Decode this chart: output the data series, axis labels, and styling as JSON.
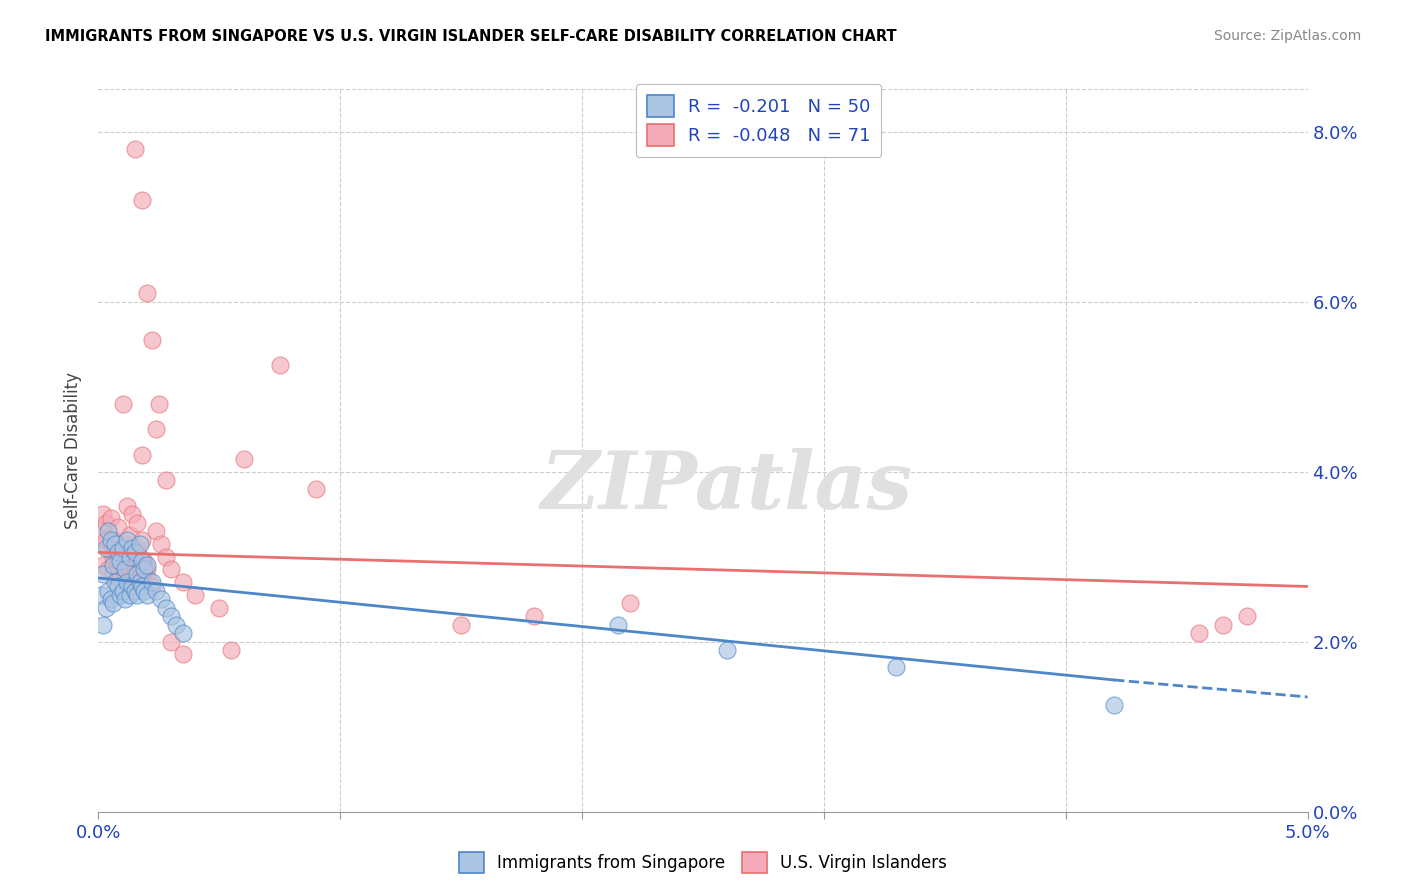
{
  "title": "IMMIGRANTS FROM SINGAPORE VS U.S. VIRGIN ISLANDER SELF-CARE DISABILITY CORRELATION CHART",
  "source": "Source: ZipAtlas.com",
  "ylabel": "Self-Care Disability",
  "xmin": 0.0,
  "xmax": 5.0,
  "ymin": 0.0,
  "ymax": 8.5,
  "ytick_vals": [
    0,
    2,
    4,
    6,
    8
  ],
  "ytick_labels": [
    "0.0%",
    "2.0%",
    "4.0%",
    "6.0%",
    "8.0%"
  ],
  "xtick_vals": [
    0.0,
    1.0,
    2.0,
    3.0,
    4.0,
    5.0
  ],
  "xtick_labels": [
    "0.0%",
    "",
    "",
    "",
    "",
    "5.0%"
  ],
  "legend_blue_r": "-0.201",
  "legend_blue_n": "50",
  "legend_pink_r": "-0.048",
  "legend_pink_n": "71",
  "blue_color": "#aac4e2",
  "pink_color": "#f4aab8",
  "blue_line_color": "#4e86c8",
  "pink_line_color": "#e87070",
  "legend_text_color": "#2244bb",
  "axis_text_color": "#2244bb",
  "watermark": "ZIPatlas",
  "blue_scatter_x": [
    0.01,
    0.02,
    0.02,
    0.03,
    0.03,
    0.04,
    0.04,
    0.05,
    0.05,
    0.06,
    0.06,
    0.07,
    0.07,
    0.08,
    0.08,
    0.09,
    0.09,
    0.1,
    0.1,
    0.11,
    0.11,
    0.12,
    0.12,
    0.13,
    0.13,
    0.14,
    0.14,
    0.15,
    0.15,
    0.16,
    0.16,
    0.17,
    0.17,
    0.18,
    0.18,
    0.19,
    0.19,
    0.2,
    0.2,
    0.22,
    0.24,
    0.26,
    0.28,
    0.3,
    0.32,
    0.35,
    2.15,
    2.6,
    3.3,
    4.2
  ],
  "blue_scatter_y": [
    2.55,
    2.2,
    2.8,
    2.4,
    3.1,
    2.6,
    3.3,
    2.5,
    3.2,
    2.45,
    2.9,
    2.7,
    3.15,
    2.65,
    3.05,
    2.55,
    2.95,
    2.6,
    3.1,
    2.5,
    2.85,
    2.7,
    3.2,
    2.55,
    3.0,
    2.65,
    3.1,
    2.6,
    3.05,
    2.55,
    2.8,
    2.7,
    3.15,
    2.65,
    2.95,
    2.6,
    2.85,
    2.55,
    2.9,
    2.7,
    2.6,
    2.5,
    2.4,
    2.3,
    2.2,
    2.1,
    2.2,
    1.9,
    1.7,
    1.25
  ],
  "pink_scatter_x": [
    0.01,
    0.02,
    0.02,
    0.03,
    0.03,
    0.04,
    0.04,
    0.05,
    0.05,
    0.06,
    0.06,
    0.07,
    0.07,
    0.08,
    0.08,
    0.09,
    0.09,
    0.1,
    0.1,
    0.11,
    0.11,
    0.12,
    0.12,
    0.13,
    0.13,
    0.14,
    0.14,
    0.15,
    0.15,
    0.16,
    0.16,
    0.17,
    0.17,
    0.18,
    0.18,
    0.19,
    0.19,
    0.2,
    0.2,
    0.22,
    0.24,
    0.26,
    0.28,
    0.3,
    0.35,
    0.4,
    0.5,
    0.6,
    0.75,
    0.9,
    0.1,
    0.12,
    0.14,
    0.16,
    0.18,
    1.5,
    1.8,
    2.2,
    0.2,
    0.22,
    0.55,
    4.55,
    4.65,
    4.75,
    0.15,
    0.18,
    0.24,
    0.25,
    0.28,
    0.3,
    0.35
  ],
  "pink_scatter_y": [
    3.3,
    3.5,
    2.9,
    3.4,
    3.2,
    3.1,
    2.85,
    3.45,
    3.15,
    3.0,
    2.8,
    3.2,
    3.05,
    2.95,
    3.35,
    2.75,
    3.1,
    3.0,
    2.9,
    2.8,
    3.15,
    3.05,
    2.95,
    2.85,
    3.25,
    2.75,
    3.0,
    2.9,
    2.8,
    2.7,
    3.1,
    3.0,
    2.9,
    2.8,
    3.2,
    2.7,
    2.95,
    2.85,
    2.75,
    2.65,
    3.3,
    3.15,
    3.0,
    2.85,
    2.7,
    2.55,
    2.4,
    4.15,
    5.25,
    3.8,
    4.8,
    3.6,
    3.5,
    3.4,
    4.2,
    2.2,
    2.3,
    2.45,
    6.1,
    5.55,
    1.9,
    2.1,
    2.2,
    2.3,
    7.8,
    7.2,
    4.5,
    4.8,
    3.9,
    2.0,
    1.85
  ],
  "blue_trend_x0": 0.0,
  "blue_trend_y0": 2.75,
  "blue_trend_x1": 4.2,
  "blue_trend_y1": 1.55,
  "blue_dashed_x0": 4.2,
  "blue_dashed_y0": 1.55,
  "blue_dashed_x1": 5.0,
  "blue_dashed_y1": 1.35,
  "pink_trend_x0": 0.0,
  "pink_trend_y0": 3.05,
  "pink_trend_x1": 5.0,
  "pink_trend_y1": 2.65
}
